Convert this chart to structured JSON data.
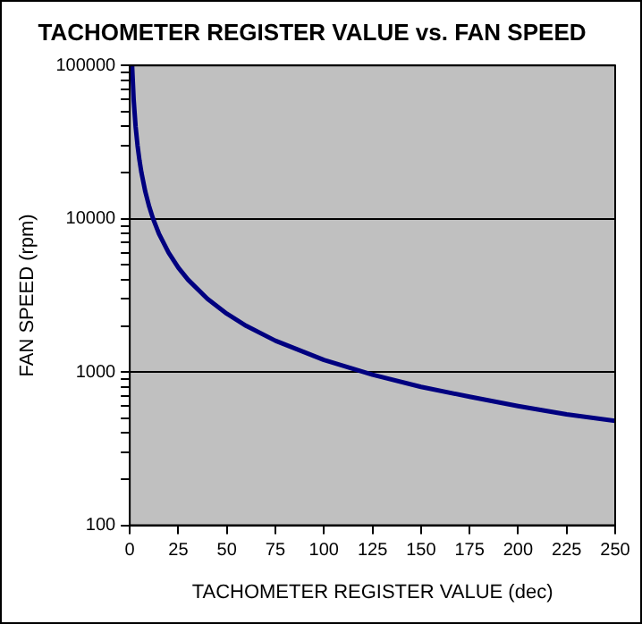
{
  "chart_data": {
    "type": "line",
    "title": "TACHOMETER REGISTER VALUE vs. FAN SPEED",
    "xlabel": "TACHOMETER REGISTER VALUE (dec)",
    "ylabel": "FAN SPEED (rpm)",
    "x": [
      1.2,
      2,
      3,
      4,
      5,
      6,
      8,
      10,
      12,
      15,
      20,
      25,
      30,
      40,
      50,
      60,
      75,
      100,
      125,
      150,
      175,
      200,
      225,
      250
    ],
    "series": [
      {
        "color": "#000080",
        "values": [
          100000,
          60000,
          40000,
          30000,
          24000,
          20000,
          15000,
          12000,
          10000,
          8000,
          6000,
          4800,
          4000,
          3000,
          2400,
          2000,
          1600,
          1200,
          960,
          800,
          690,
          600,
          530,
          480
        ]
      }
    ],
    "xlim": [
      0,
      250
    ],
    "xticks": [
      0,
      25,
      50,
      75,
      100,
      125,
      150,
      175,
      200,
      225,
      250
    ],
    "ylim": [
      100,
      100000
    ],
    "yticks": [
      100,
      {
        "value": 200,
        "label": null
      },
      {
        "value": 300,
        "label": null
      },
      {
        "value": 400,
        "label": null
      },
      {
        "value": 500,
        "label": null
      },
      {
        "value": 600,
        "label": null
      },
      {
        "value": 700,
        "label": null
      },
      {
        "value": 800,
        "label": null
      },
      {
        "value": 900,
        "label": null
      },
      1000,
      {
        "value": 2000,
        "label": null
      },
      {
        "value": 3000,
        "label": null
      },
      {
        "value": 4000,
        "label": null
      },
      {
        "value": 5000,
        "label": null
      },
      {
        "value": 6000,
        "label": null
      },
      {
        "value": 7000,
        "label": null
      },
      {
        "value": 8000,
        "label": null
      },
      {
        "value": 9000,
        "label": null
      },
      10000,
      {
        "value": 20000,
        "label": null
      },
      {
        "value": 30000,
        "label": null
      },
      {
        "value": 40000,
        "label": null
      },
      {
        "value": 50000,
        "label": null
      },
      {
        "value": 60000,
        "label": null
      },
      {
        "value": 70000,
        "label": null
      },
      {
        "value": 80000,
        "label": null
      },
      {
        "value": 90000,
        "label": null
      },
      100000
    ],
    "log": "y",
    "grid": "y",
    "legend": false,
    "marker": "none",
    "line_style": "solid"
  }
}
